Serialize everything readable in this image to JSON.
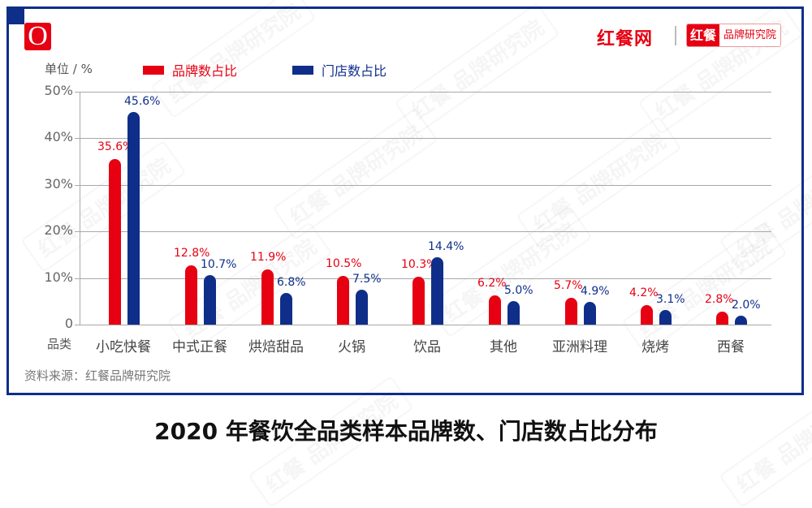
{
  "header": {
    "logo_letter": "O",
    "brand_name": "红餐网",
    "brand_badge_left": "红餐",
    "brand_badge_right": "品牌研究院"
  },
  "watermark": "红餐 品牌研究院",
  "chart_data": {
    "type": "bar",
    "title": "2020 年餐饮全品类样本品牌数、门店数占比分布",
    "unit_label": "单位 / %",
    "xlabel": "品类",
    "ylabel": "单位 / %",
    "ylim": [
      0,
      50
    ],
    "yticks": [
      "0",
      "10%",
      "20%",
      "30%",
      "40%",
      "50%"
    ],
    "grid": true,
    "legend_position": "top",
    "categories": [
      "小吃快餐",
      "中式正餐",
      "烘焙甜品",
      "火锅",
      "饮品",
      "其他",
      "亚洲料理",
      "烧烤",
      "西餐"
    ],
    "series": [
      {
        "name": "品牌数占比",
        "color": "#e60012",
        "values": [
          35.6,
          12.8,
          11.9,
          10.5,
          10.3,
          6.2,
          5.7,
          4.2,
          2.8
        ],
        "labels": [
          "35.6%",
          "12.8%",
          "11.9%",
          "10.5%",
          "10.3%",
          "6.2%",
          "5.7%",
          "4.2%",
          "2.8%"
        ]
      },
      {
        "name": "门店数占比",
        "color": "#0f2e8a",
        "values": [
          45.6,
          10.7,
          6.8,
          7.5,
          14.4,
          5.0,
          4.9,
          3.1,
          2.0
        ],
        "labels": [
          "45.6%",
          "10.7%",
          "6.8%",
          "7.5%",
          "14.4%",
          "5.0%",
          "4.9%",
          "3.1%",
          "2.0%"
        ]
      }
    ],
    "source": "资料来源：红餐品牌研究院"
  }
}
